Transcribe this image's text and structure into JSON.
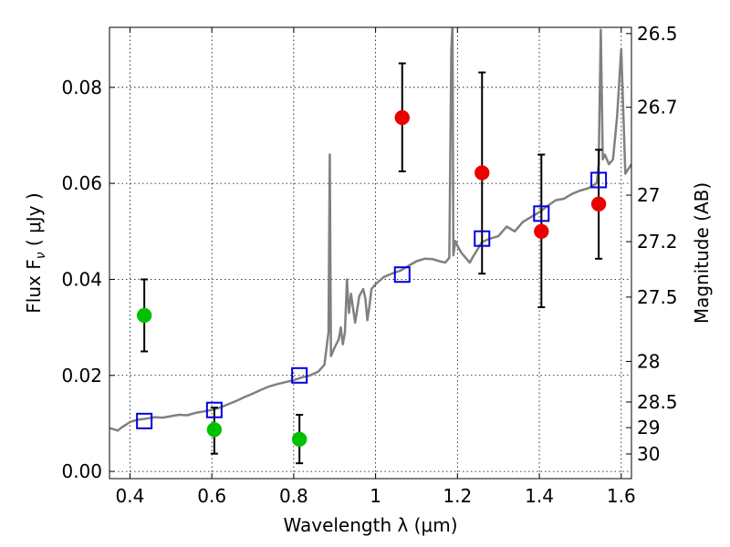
{
  "chart_data": {
    "type": "scatter",
    "xlabel": "Wavelength  λ (μm)",
    "ylabel": "Flux  F",
    "ylabel_sub": "ν",
    "ylabel_unit": "  ( μJy )",
    "y2label": "Magnitude (AB)",
    "xlim": [
      0.35,
      1.625
    ],
    "ylim": [
      -0.0015,
      0.0925
    ],
    "grid": true,
    "x_ticks": [
      {
        "value": 0.4,
        "label": "0.4"
      },
      {
        "value": 0.6,
        "label": "0.6"
      },
      {
        "value": 0.8,
        "label": "0.8"
      },
      {
        "value": 1.0,
        "label": "1"
      },
      {
        "value": 1.2,
        "label": "1.2"
      },
      {
        "value": 1.4,
        "label": "1.4"
      },
      {
        "value": 1.6,
        "label": "1.6"
      }
    ],
    "y_ticks": [
      {
        "value": 0.0,
        "label": "0.00"
      },
      {
        "value": 0.02,
        "label": "0.02"
      },
      {
        "value": 0.04,
        "label": "0.04"
      },
      {
        "value": 0.06,
        "label": "0.06"
      },
      {
        "value": 0.08,
        "label": "0.08"
      }
    ],
    "y2_ticks": [
      {
        "value": 26.5,
        "label": "26.5"
      },
      {
        "value": 26.7,
        "label": "26.7"
      },
      {
        "value": 27.0,
        "label": "27"
      },
      {
        "value": 27.2,
        "label": "27.2"
      },
      {
        "value": 27.5,
        "label": "27.5"
      },
      {
        "value": 28.0,
        "label": "28"
      },
      {
        "value": 28.5,
        "label": "28.5"
      },
      {
        "value": 29.0,
        "label": "29"
      },
      {
        "value": 30.0,
        "label": "30"
      }
    ],
    "series": [
      {
        "type": "scatter-errorbar",
        "color": "#00c000",
        "points": [
          {
            "x": 0.435,
            "y": 0.0325,
            "ylow": 0.025,
            "yhigh": 0.04
          },
          {
            "x": 0.606,
            "y": 0.0087,
            "ylow": 0.0037,
            "yhigh": 0.0133
          },
          {
            "x": 0.814,
            "y": 0.0067,
            "ylow": 0.0017,
            "yhigh": 0.0118
          }
        ]
      },
      {
        "type": "scatter-errorbar",
        "color": "#ee0000",
        "points": [
          {
            "x": 1.065,
            "y": 0.0737,
            "ylow": 0.0625,
            "yhigh": 0.085
          },
          {
            "x": 1.26,
            "y": 0.0622,
            "ylow": 0.0412,
            "yhigh": 0.0831
          },
          {
            "x": 1.405,
            "y": 0.05,
            "ylow": 0.0342,
            "yhigh": 0.066
          },
          {
            "x": 1.545,
            "y": 0.0557,
            "ylow": 0.0443,
            "yhigh": 0.067
          }
        ]
      },
      {
        "type": "model-photometry",
        "color": "#0000dd",
        "marker": "open-square",
        "points": [
          {
            "x": 0.435,
            "y": 0.0105
          },
          {
            "x": 0.606,
            "y": 0.0128
          },
          {
            "x": 0.814,
            "y": 0.02
          },
          {
            "x": 1.065,
            "y": 0.041
          },
          {
            "x": 1.26,
            "y": 0.0485
          },
          {
            "x": 1.405,
            "y": 0.0537
          },
          {
            "x": 1.545,
            "y": 0.0607
          }
        ]
      },
      {
        "type": "line",
        "color": "#808080",
        "points": [
          [
            0.35,
            0.009
          ],
          [
            0.36,
            0.0088
          ],
          [
            0.37,
            0.0085
          ],
          [
            0.38,
            0.0092
          ],
          [
            0.39,
            0.0097
          ],
          [
            0.4,
            0.0103
          ],
          [
            0.42,
            0.0108
          ],
          [
            0.44,
            0.011
          ],
          [
            0.46,
            0.0113
          ],
          [
            0.48,
            0.0112
          ],
          [
            0.5,
            0.0115
          ],
          [
            0.52,
            0.0118
          ],
          [
            0.54,
            0.0117
          ],
          [
            0.56,
            0.0122
          ],
          [
            0.58,
            0.0125
          ],
          [
            0.6,
            0.0128
          ],
          [
            0.62,
            0.0133
          ],
          [
            0.64,
            0.014
          ],
          [
            0.66,
            0.0147
          ],
          [
            0.68,
            0.0155
          ],
          [
            0.7,
            0.0162
          ],
          [
            0.72,
            0.017
          ],
          [
            0.74,
            0.0177
          ],
          [
            0.76,
            0.0182
          ],
          [
            0.78,
            0.0186
          ],
          [
            0.8,
            0.019
          ],
          [
            0.82,
            0.0196
          ],
          [
            0.84,
            0.02
          ],
          [
            0.86,
            0.0208
          ],
          [
            0.875,
            0.0222
          ],
          [
            0.885,
            0.029
          ],
          [
            0.888,
            0.066
          ],
          [
            0.891,
            0.024
          ],
          [
            0.9,
            0.0258
          ],
          [
            0.91,
            0.0275
          ],
          [
            0.915,
            0.03
          ],
          [
            0.92,
            0.0265
          ],
          [
            0.925,
            0.029
          ],
          [
            0.93,
            0.04
          ],
          [
            0.935,
            0.033
          ],
          [
            0.94,
            0.037
          ],
          [
            0.945,
            0.034
          ],
          [
            0.95,
            0.031
          ],
          [
            0.96,
            0.0365
          ],
          [
            0.97,
            0.038
          ],
          [
            0.975,
            0.036
          ],
          [
            0.98,
            0.0315
          ],
          [
            0.985,
            0.0345
          ],
          [
            0.99,
            0.038
          ],
          [
            1.0,
            0.039
          ],
          [
            1.02,
            0.0405
          ],
          [
            1.04,
            0.0412
          ],
          [
            1.06,
            0.0418
          ],
          [
            1.08,
            0.0428
          ],
          [
            1.1,
            0.0438
          ],
          [
            1.12,
            0.0443
          ],
          [
            1.14,
            0.0442
          ],
          [
            1.16,
            0.0437
          ],
          [
            1.17,
            0.0435
          ],
          [
            1.18,
            0.0445
          ],
          [
            1.185,
            0.088
          ],
          [
            1.188,
            0.093
          ],
          [
            1.19,
            0.045
          ],
          [
            1.195,
            0.048
          ],
          [
            1.2,
            0.047
          ],
          [
            1.21,
            0.0455
          ],
          [
            1.22,
            0.0445
          ],
          [
            1.23,
            0.0435
          ],
          [
            1.24,
            0.045
          ],
          [
            1.26,
            0.0478
          ],
          [
            1.28,
            0.0485
          ],
          [
            1.3,
            0.049
          ],
          [
            1.32,
            0.051
          ],
          [
            1.34,
            0.05
          ],
          [
            1.36,
            0.052
          ],
          [
            1.38,
            0.053
          ],
          [
            1.4,
            0.054
          ],
          [
            1.42,
            0.0553
          ],
          [
            1.44,
            0.0565
          ],
          [
            1.46,
            0.0568
          ],
          [
            1.48,
            0.0578
          ],
          [
            1.5,
            0.0585
          ],
          [
            1.52,
            0.059
          ],
          [
            1.54,
            0.06
          ],
          [
            1.545,
            0.064
          ],
          [
            1.55,
            0.092
          ],
          [
            1.555,
            0.065
          ],
          [
            1.56,
            0.066
          ],
          [
            1.57,
            0.064
          ],
          [
            1.58,
            0.065
          ],
          [
            1.59,
            0.074
          ],
          [
            1.6,
            0.088
          ],
          [
            1.61,
            0.062
          ],
          [
            1.625,
            0.064
          ]
        ]
      }
    ]
  }
}
